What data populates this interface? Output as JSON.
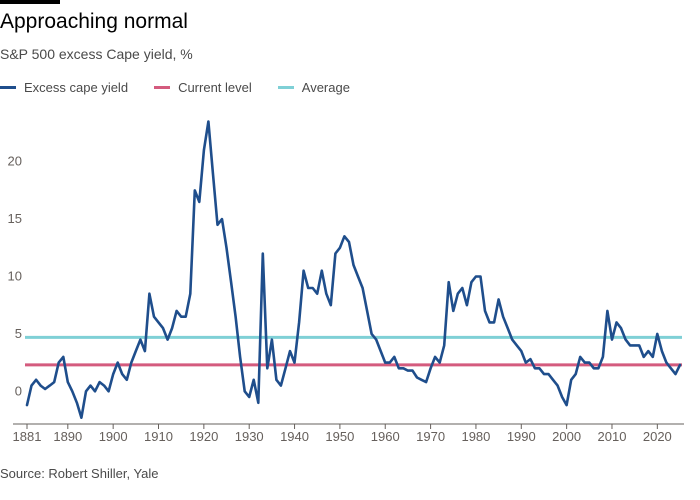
{
  "header": {
    "title": "Approaching normal",
    "subtitle": "S&P 500 excess Cape yield, %"
  },
  "source": "Source: Robert Shiller, Yale",
  "colors": {
    "series": "#1f4e8c",
    "current": "#d45b7e",
    "average": "#7fd0d6",
    "axis": "#66605c"
  },
  "chart_data": {
    "type": "line",
    "title": "Approaching normal",
    "subtitle": "S&P 500 excess Cape yield, %",
    "legend": [
      {
        "name": "Excess cape yield",
        "color": "#1f4e8c"
      },
      {
        "name": "Current level",
        "color": "#d45b7e"
      },
      {
        "name": "Average",
        "color": "#7fd0d6"
      }
    ],
    "legend_position": "top-left",
    "xlim": [
      1881,
      2025
    ],
    "ylim": [
      -2.5,
      24.5
    ],
    "x_ticks": [
      1881,
      1890,
      1900,
      1910,
      1920,
      1930,
      1940,
      1950,
      1960,
      1970,
      1980,
      1990,
      2000,
      2010,
      2020
    ],
    "y_ticks": [
      0,
      5,
      10,
      15,
      20
    ],
    "grid": false,
    "reference_lines": [
      {
        "name": "Current level",
        "y": 2.3
      },
      {
        "name": "Average",
        "y": 4.7
      }
    ],
    "series": [
      {
        "name": "Excess cape yield",
        "x": [
          1881,
          1882,
          1883,
          1884,
          1885,
          1886,
          1887,
          1888,
          1889,
          1890,
          1891,
          1892,
          1893,
          1894,
          1895,
          1896,
          1897,
          1898,
          1899,
          1900,
          1901,
          1902,
          1903,
          1904,
          1905,
          1906,
          1907,
          1908,
          1909,
          1910,
          1911,
          1912,
          1913,
          1914,
          1915,
          1916,
          1917,
          1918,
          1919,
          1920,
          1921,
          1922,
          1923,
          1924,
          1925,
          1926,
          1927,
          1928,
          1929,
          1930,
          1931,
          1932,
          1933,
          1934,
          1935,
          1936,
          1937,
          1938,
          1939,
          1940,
          1941,
          1942,
          1943,
          1944,
          1945,
          1946,
          1947,
          1948,
          1949,
          1950,
          1951,
          1952,
          1953,
          1954,
          1955,
          1956,
          1957,
          1958,
          1959,
          1960,
          1961,
          1962,
          1963,
          1964,
          1965,
          1966,
          1967,
          1968,
          1969,
          1970,
          1971,
          1972,
          1973,
          1974,
          1975,
          1976,
          1977,
          1978,
          1979,
          1980,
          1981,
          1982,
          1983,
          1984,
          1985,
          1986,
          1987,
          1988,
          1989,
          1990,
          1991,
          1992,
          1993,
          1994,
          1995,
          1996,
          1997,
          1998,
          1999,
          2000,
          2001,
          2002,
          2003,
          2004,
          2005,
          2006,
          2007,
          2008,
          2009,
          2010,
          2011,
          2012,
          2013,
          2014,
          2015,
          2016,
          2017,
          2018,
          2019,
          2020,
          2021,
          2022,
          2023,
          2024,
          2025
        ],
        "values": [
          -1.2,
          0.5,
          1.0,
          0.5,
          0.2,
          0.5,
          0.8,
          2.5,
          3.0,
          0.8,
          0.0,
          -1.0,
          -2.3,
          0.0,
          0.5,
          0.0,
          0.8,
          0.5,
          0.0,
          1.5,
          2.5,
          1.5,
          1.0,
          2.5,
          3.5,
          4.5,
          3.5,
          8.5,
          6.5,
          6.0,
          5.5,
          4.5,
          5.5,
          7.0,
          6.5,
          6.5,
          8.5,
          17.5,
          16.5,
          21.0,
          23.5,
          19.0,
          14.5,
          15.0,
          12.5,
          9.5,
          6.5,
          3.0,
          0.0,
          -0.5,
          1.0,
          -1.0,
          12.0,
          2.0,
          4.5,
          1.0,
          0.5,
          2.0,
          3.5,
          2.5,
          6.0,
          10.5,
          9.0,
          9.0,
          8.5,
          10.5,
          8.5,
          7.5,
          12.0,
          12.5,
          13.5,
          13.0,
          11.0,
          10.0,
          9.0,
          7.0,
          5.0,
          4.5,
          3.5,
          2.5,
          2.5,
          3.0,
          2.0,
          2.0,
          1.8,
          1.8,
          1.2,
          1.0,
          0.8,
          2.0,
          3.0,
          2.5,
          4.0,
          9.5,
          7.0,
          8.5,
          9.0,
          7.5,
          9.5,
          10.0,
          10.0,
          7.0,
          6.0,
          6.0,
          8.0,
          6.5,
          5.5,
          4.5,
          4.0,
          3.5,
          2.5,
          2.8,
          2.0,
          2.0,
          1.5,
          1.5,
          1.0,
          0.5,
          -0.5,
          -1.2,
          1.0,
          1.5,
          3.0,
          2.5,
          2.5,
          2.0,
          2.0,
          3.0,
          7.0,
          4.5,
          6.0,
          5.5,
          4.5,
          4.0,
          4.0,
          4.0,
          3.0,
          3.5,
          3.0,
          5.0,
          3.5,
          2.5,
          2.0,
          1.5,
          2.3
        ]
      }
    ]
  }
}
